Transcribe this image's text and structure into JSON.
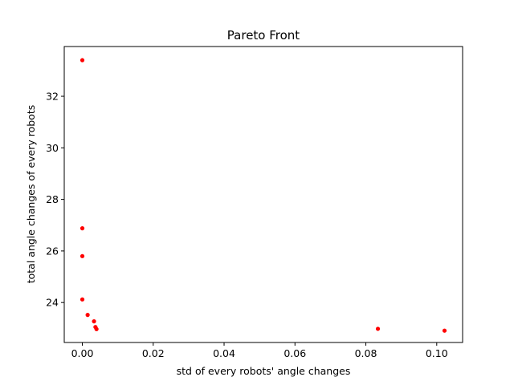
{
  "chart_data": {
    "type": "scatter",
    "title": "Pareto Front",
    "xlabel": "std of every robots' angle changes",
    "ylabel": "total angle changes of every robots",
    "xlim": [
      -0.0051,
      0.1073
    ],
    "ylim": [
      22.45,
      33.93
    ],
    "xticks": [
      0.0,
      0.02,
      0.04,
      0.06,
      0.08,
      0.1
    ],
    "xtick_labels": [
      "0.00",
      "0.02",
      "0.04",
      "0.06",
      "0.08",
      "0.10"
    ],
    "yticks": [
      24,
      26,
      28,
      30,
      32
    ],
    "ytick_labels": [
      "24",
      "26",
      "28",
      "30",
      "32"
    ],
    "grid": false,
    "marker_color": "#ff0000",
    "series": [
      {
        "points": [
          {
            "x": 0.0,
            "y": 33.4
          },
          {
            "x": 0.0,
            "y": 26.88
          },
          {
            "x": 0.0,
            "y": 25.8
          },
          {
            "x": 0.0,
            "y": 24.12
          },
          {
            "x": 0.0015,
            "y": 23.52
          },
          {
            "x": 0.0033,
            "y": 23.27
          },
          {
            "x": 0.0037,
            "y": 23.05
          },
          {
            "x": 0.004,
            "y": 22.97
          },
          {
            "x": 0.0834,
            "y": 22.98
          },
          {
            "x": 0.1022,
            "y": 22.91
          }
        ]
      }
    ]
  }
}
